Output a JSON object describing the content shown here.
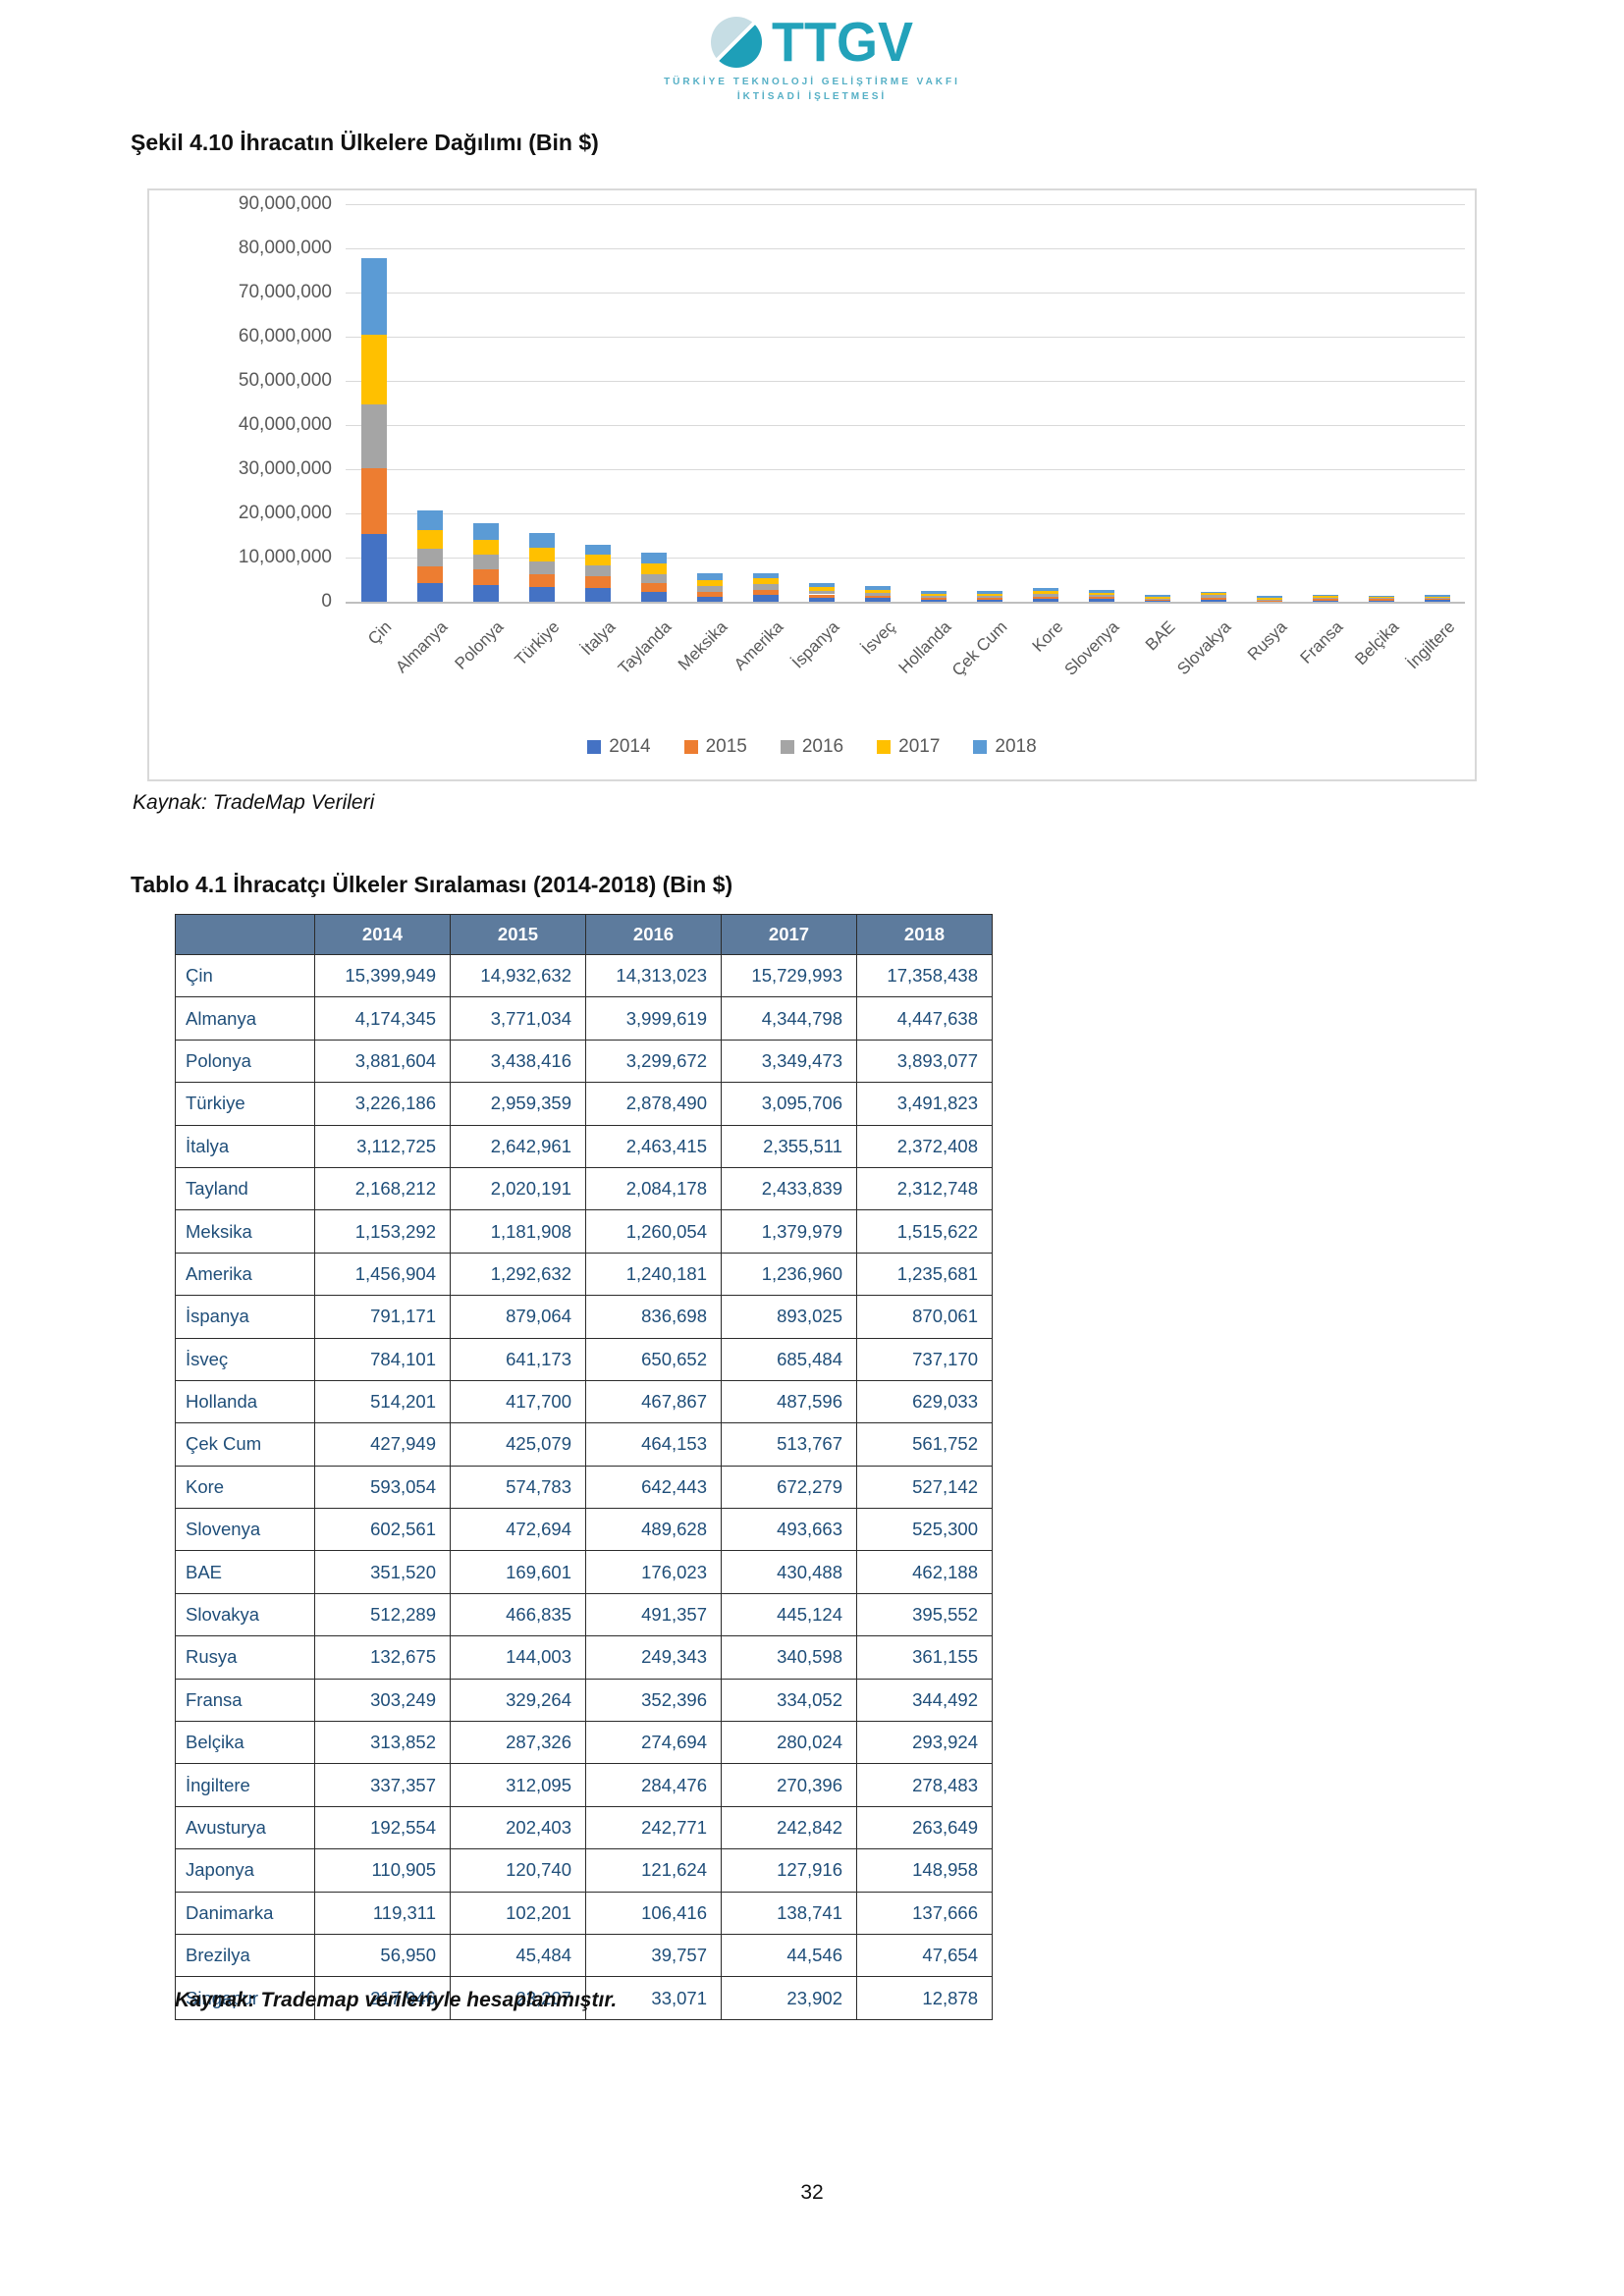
{
  "page": {
    "number": "32"
  },
  "logo": {
    "brand": "TTGV",
    "line1": "TÜRKİYE TEKNOLOJİ GELİŞTİRME VAKFI",
    "line2": "İKTİSADİ İŞLETMESİ",
    "teal": "#1E9FB8",
    "light_half": "#C6DDE4"
  },
  "figure": {
    "title": "Şekil 4.10 İhracatın Ülkelere Dağılımı (Bin $)",
    "source": "Kaynak: TradeMap Verileri"
  },
  "chart_data": {
    "type": "bar",
    "stacked": true,
    "title": "Şekil 4.10 İhracatın Ülkelere Dağılımı (Bin $)",
    "xlabel": "",
    "ylabel": "",
    "ylim": [
      0,
      90000000
    ],
    "ytick_step": 10000000,
    "grid": true,
    "legend_position": "bottom",
    "categories": [
      "Çin",
      "Almanya",
      "Polonya",
      "Türkiye",
      "İtalya",
      "Taylanda",
      "Meksika",
      "Amerika",
      "İspanya",
      "İsveç",
      "Hollanda",
      "Çek Cum",
      "Kore",
      "Slovenya",
      "BAE",
      "Slovakya",
      "Rusya",
      "Fransa",
      "Belçika",
      "İngiltere"
    ],
    "series": [
      {
        "name": "2014",
        "color": "#4472C4",
        "values": [
          15399949,
          4174345,
          3881604,
          3226186,
          3112725,
          2168212,
          1153292,
          1456904,
          791171,
          784101,
          514201,
          427949,
          593054,
          602561,
          351520,
          512289,
          132675,
          303249,
          313852,
          337357
        ]
      },
      {
        "name": "2015",
        "color": "#ED7D31",
        "values": [
          14932632,
          3771034,
          3438416,
          2959359,
          2642961,
          2020191,
          1181908,
          1292632,
          879064,
          641173,
          417700,
          425079,
          574783,
          472694,
          169601,
          466835,
          144003,
          329264,
          287326,
          312095
        ]
      },
      {
        "name": "2016",
        "color": "#A5A5A5",
        "values": [
          14313023,
          3999619,
          3299672,
          2878490,
          2463415,
          2084178,
          1260054,
          1240181,
          836698,
          650652,
          467867,
          464153,
          642443,
          489628,
          176023,
          491357,
          249343,
          352396,
          274694,
          284476
        ]
      },
      {
        "name": "2017",
        "color": "#FFC000",
        "values": [
          15729993,
          4344798,
          3349473,
          3095706,
          2355511,
          2433839,
          1379979,
          1236960,
          893025,
          685484,
          487596,
          513767,
          672279,
          493663,
          430488,
          445124,
          340598,
          334052,
          280024,
          270396
        ]
      },
      {
        "name": "2018",
        "color": "#5B9BD5",
        "values": [
          17358438,
          4447638,
          3893077,
          3491823,
          2372408,
          2312748,
          1515622,
          1235681,
          870061,
          737170,
          629033,
          561752,
          527142,
          525300,
          462188,
          395552,
          361155,
          344492,
          293924,
          278483
        ]
      }
    ]
  },
  "table": {
    "title": "Tablo 4.1 İhracatçı Ülkeler Sıralaması (2014-2018) (Bin $)",
    "header_bg": "#5D7B9D",
    "text_color": "#1F4E79",
    "columns": [
      "2014",
      "2015",
      "2016",
      "2017",
      "2018"
    ],
    "rows": [
      {
        "country": "Çin",
        "values": [
          15399949,
          14932632,
          14313023,
          15729993,
          17358438
        ]
      },
      {
        "country": "Almanya",
        "values": [
          4174345,
          3771034,
          3999619,
          4344798,
          4447638
        ]
      },
      {
        "country": "Polonya",
        "values": [
          3881604,
          3438416,
          3299672,
          3349473,
          3893077
        ]
      },
      {
        "country": "Türkiye",
        "values": [
          3226186,
          2959359,
          2878490,
          3095706,
          3491823
        ]
      },
      {
        "country": "İtalya",
        "values": [
          3112725,
          2642961,
          2463415,
          2355511,
          2372408
        ]
      },
      {
        "country": "Tayland",
        "values": [
          2168212,
          2020191,
          2084178,
          2433839,
          2312748
        ]
      },
      {
        "country": "Meksika",
        "values": [
          1153292,
          1181908,
          1260054,
          1379979,
          1515622
        ]
      },
      {
        "country": "Amerika",
        "values": [
          1456904,
          1292632,
          1240181,
          1236960,
          1235681
        ]
      },
      {
        "country": "İspanya",
        "values": [
          791171,
          879064,
          836698,
          893025,
          870061
        ]
      },
      {
        "country": "İsveç",
        "values": [
          784101,
          641173,
          650652,
          685484,
          737170
        ]
      },
      {
        "country": "Hollanda",
        "values": [
          514201,
          417700,
          467867,
          487596,
          629033
        ]
      },
      {
        "country": "Çek Cum",
        "values": [
          427949,
          425079,
          464153,
          513767,
          561752
        ]
      },
      {
        "country": "Kore",
        "values": [
          593054,
          574783,
          642443,
          672279,
          527142
        ]
      },
      {
        "country": "Slovenya",
        "values": [
          602561,
          472694,
          489628,
          493663,
          525300
        ]
      },
      {
        "country": "BAE",
        "values": [
          351520,
          169601,
          176023,
          430488,
          462188
        ]
      },
      {
        "country": "Slovakya",
        "values": [
          512289,
          466835,
          491357,
          445124,
          395552
        ]
      },
      {
        "country": "Rusya",
        "values": [
          132675,
          144003,
          249343,
          340598,
          361155
        ]
      },
      {
        "country": "Fransa",
        "values": [
          303249,
          329264,
          352396,
          334052,
          344492
        ]
      },
      {
        "country": "Belçika",
        "values": [
          313852,
          287326,
          274694,
          280024,
          293924
        ]
      },
      {
        "country": "İngiltere",
        "values": [
          337357,
          312095,
          284476,
          270396,
          278483
        ]
      },
      {
        "country": "Avusturya",
        "values": [
          192554,
          202403,
          242771,
          242842,
          263649
        ]
      },
      {
        "country": "Japonya",
        "values": [
          110905,
          120740,
          121624,
          127916,
          148958
        ]
      },
      {
        "country": "Danimarka",
        "values": [
          119311,
          102201,
          106416,
          138741,
          137666
        ]
      },
      {
        "country": "Brezilya",
        "values": [
          56950,
          45484,
          39757,
          44546,
          47654
        ]
      },
      {
        "country": "Singapur",
        "values": [
          217946,
          23207,
          33071,
          23902,
          12878
        ]
      }
    ],
    "source": "Kaynak: Trademap verileriyle hesaplanmıştır."
  }
}
